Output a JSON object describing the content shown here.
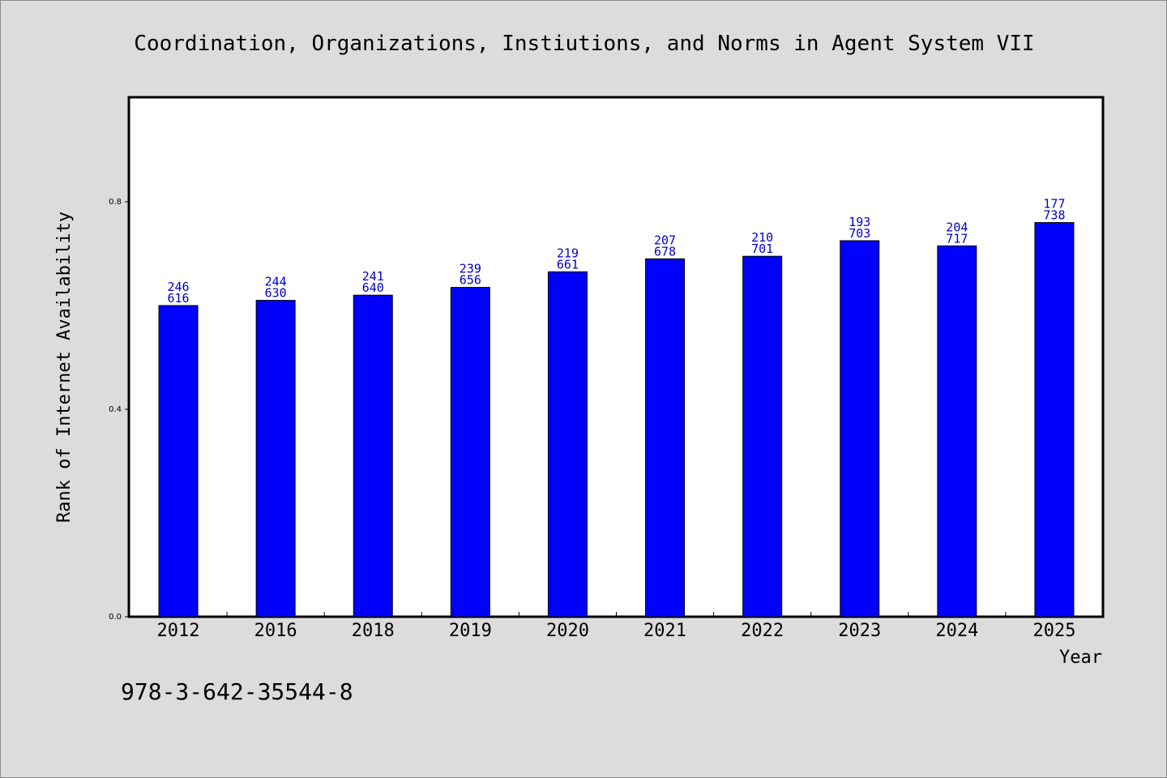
{
  "chart_data": {
    "type": "bar",
    "title": "Coordination, Organizations, Instiutions, and Norms in Agent System VII",
    "xlabel": "Year",
    "ylabel": "Rank of Internet Availability",
    "categories": [
      "2012",
      "2016",
      "2018",
      "2019",
      "2020",
      "2021",
      "2022",
      "2023",
      "2024",
      "2025"
    ],
    "values": [
      0.6,
      0.61,
      0.62,
      0.635,
      0.665,
      0.69,
      0.695,
      0.725,
      0.715,
      0.76
    ],
    "label_top": [
      "246",
      "244",
      "241",
      "239",
      "219",
      "207",
      "210",
      "193",
      "204",
      "177"
    ],
    "label_bottom": [
      "616",
      "630",
      "640",
      "656",
      "661",
      "678",
      "701",
      "703",
      "717",
      "738"
    ],
    "yticks": [
      0.0,
      0.4,
      0.8
    ],
    "ytick_labels": [
      "0.0",
      "0.4",
      "0.8"
    ],
    "ylim": [
      0,
      1.0
    ],
    "grid": false,
    "bar_color": "#0000ff",
    "label_color": "#0000cc"
  },
  "footnote": "978-3-642-35544-8"
}
